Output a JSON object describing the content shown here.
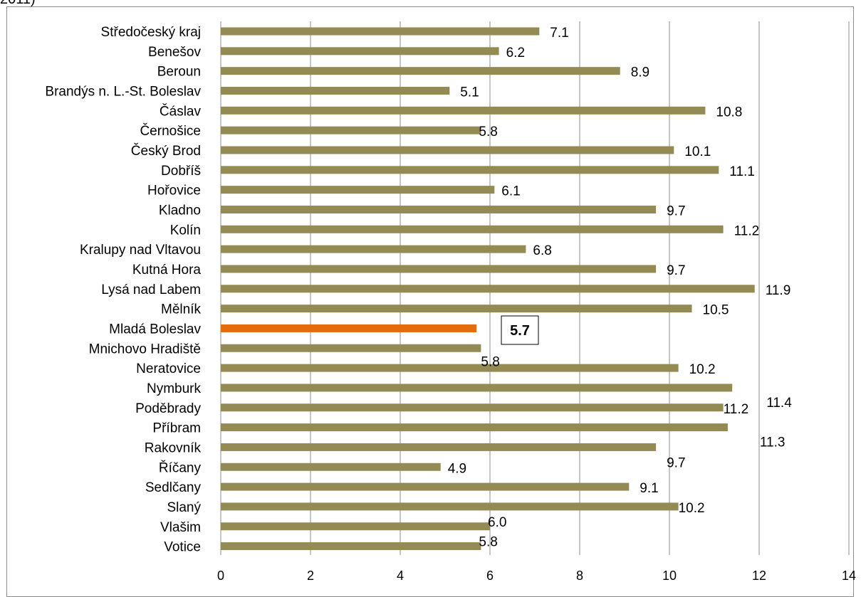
{
  "caption_fragment": "2011)",
  "chart_data": {
    "type": "bar",
    "orientation": "horizontal",
    "title": "",
    "xlabel": "",
    "ylabel": "",
    "xlim": [
      0,
      14
    ],
    "x_ticks": [
      "0",
      "2",
      "4",
      "6",
      "8",
      "10",
      "12",
      "14"
    ],
    "grid": "vertical",
    "categories": [
      "Středočeský kraj",
      "Benešov",
      "Beroun",
      "Brandýs n. L.-St. Boleslav",
      "Čáslav",
      "Černošice",
      "Český Brod",
      "Dobříš",
      "Hořovice",
      "Kladno",
      "Kolín",
      "Kralupy nad Vltavou",
      "Kutná Hora",
      "Lysá nad Labem",
      "Mělník",
      "Mladá Boleslav",
      "Mnichovo Hradiště",
      "Neratovice",
      "Nymburk",
      "Poděbrady",
      "Příbram",
      "Rakovník",
      "Říčany",
      "Sedlčany",
      "Slaný",
      "Vlašim",
      "Votice"
    ],
    "values": [
      7.1,
      6.2,
      8.9,
      5.1,
      10.8,
      5.8,
      10.1,
      11.1,
      6.1,
      9.7,
      11.2,
      6.8,
      9.7,
      11.9,
      10.5,
      5.7,
      5.8,
      10.2,
      11.4,
      11.2,
      11.3,
      9.7,
      4.9,
      9.1,
      10.2,
      6.0,
      5.8
    ],
    "labels": [
      "7.1",
      "6.2",
      "8.9",
      "5.1",
      "10.8",
      "5.8",
      "10.1",
      "11.1",
      "6.1",
      "9.7",
      "11.2",
      "6.8",
      "9.7",
      "11.9",
      "10.5",
      "5.7",
      "5.8",
      "10.2",
      "11.4",
      "11.2",
      "11.3",
      "9.7",
      "4.9",
      "9.1",
      "10.2",
      "6.0",
      "5.8"
    ],
    "bar_color": "#948a54",
    "highlight_index": 15,
    "highlight_color": "#e46c0a"
  }
}
